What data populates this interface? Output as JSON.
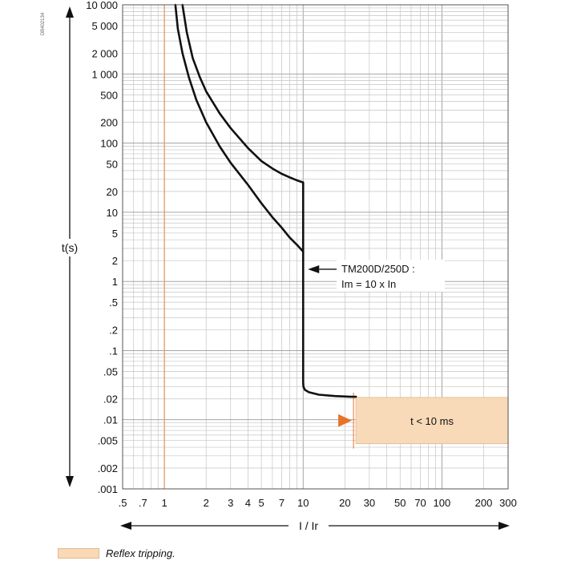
{
  "figure_code": "DB402134",
  "chart_data": {
    "type": "line",
    "x_scale": "log",
    "y_scale": "log",
    "xlim": [
      0.5,
      300
    ],
    "ylim": [
      0.001,
      10000
    ],
    "xlabel": "I / Ir",
    "ylabel": "t(s)",
    "x_ticks": [
      {
        "value": 0.5,
        "label": ".5"
      },
      {
        "value": 0.7,
        "label": ".7"
      },
      {
        "value": 1,
        "label": "1"
      },
      {
        "value": 2,
        "label": "2"
      },
      {
        "value": 3,
        "label": "3"
      },
      {
        "value": 4,
        "label": "4"
      },
      {
        "value": 5,
        "label": "5"
      },
      {
        "value": 7,
        "label": "7"
      },
      {
        "value": 10,
        "label": "10"
      },
      {
        "value": 20,
        "label": "20"
      },
      {
        "value": 30,
        "label": "30"
      },
      {
        "value": 50,
        "label": "50"
      },
      {
        "value": 70,
        "label": "70"
      },
      {
        "value": 100,
        "label": "100"
      },
      {
        "value": 200,
        "label": "200"
      },
      {
        "value": 300,
        "label": "300"
      }
    ],
    "y_ticks": [
      {
        "value": 10000,
        "label": "10 000"
      },
      {
        "value": 5000,
        "label": "5 000"
      },
      {
        "value": 2000,
        "label": "2 000"
      },
      {
        "value": 1000,
        "label": "1 000"
      },
      {
        "value": 500,
        "label": "500"
      },
      {
        "value": 200,
        "label": "200"
      },
      {
        "value": 100,
        "label": "100"
      },
      {
        "value": 50,
        "label": "50"
      },
      {
        "value": 20,
        "label": "20"
      },
      {
        "value": 10,
        "label": "10"
      },
      {
        "value": 5,
        "label": "5"
      },
      {
        "value": 2,
        "label": "2"
      },
      {
        "value": 1,
        "label": "1"
      },
      {
        "value": 0.5,
        "label": ".5"
      },
      {
        "value": 0.2,
        "label": ".2"
      },
      {
        "value": 0.1,
        "label": ".1"
      },
      {
        "value": 0.05,
        "label": ".05"
      },
      {
        "value": 0.02,
        "label": ".02"
      },
      {
        "value": 0.01,
        "label": ".01"
      },
      {
        "value": 0.005,
        "label": ".005"
      },
      {
        "value": 0.002,
        "label": ".002"
      },
      {
        "value": 0.001,
        "label": ".001"
      }
    ],
    "grid": true,
    "series": [
      {
        "x": [
          1.2,
          1.25,
          1.35,
          1.5,
          1.7,
          2.0,
          2.5,
          3.0,
          4.0,
          5.0,
          6.0,
          7.0,
          8.0,
          9.0,
          10.0
        ],
        "y": [
          10000,
          4500,
          2000,
          900,
          420,
          200,
          90,
          52,
          25,
          13.5,
          8.5,
          6.0,
          4.3,
          3.4,
          2.7
        ]
      },
      {
        "x": [
          1.35,
          1.45,
          1.6,
          1.8,
          2.0,
          2.5,
          3.0,
          4.0,
          5.0,
          6.0,
          7.0,
          8.0,
          9.0,
          10.0,
          10.0,
          10.05,
          10.3,
          11.0,
          13.0,
          17.0,
          22.0,
          24.0
        ],
        "y": [
          10000,
          4000,
          1700,
          900,
          560,
          270,
          165,
          85,
          55,
          43,
          36,
          32,
          29,
          27,
          0.035,
          0.03,
          0.027,
          0.025,
          0.023,
          0.022,
          0.0215,
          0.0215
        ]
      }
    ],
    "reference_lines": [
      {
        "axis": "x",
        "value": 1,
        "color": "#e9a070"
      }
    ],
    "annotations": [
      {
        "text_lines": [
          "TM200D/250D :",
          "Im = 10 x In"
        ],
        "x": 10,
        "y": 1.5
      }
    ],
    "shaded_region": {
      "x_range": [
        24,
        300
      ],
      "y_range": [
        0.0045,
        0.021
      ],
      "label": "t < 10 ms",
      "color": "#f8d9b8",
      "marker_color": "#e8722a"
    }
  },
  "legend": {
    "label": "Reflex tripping."
  }
}
